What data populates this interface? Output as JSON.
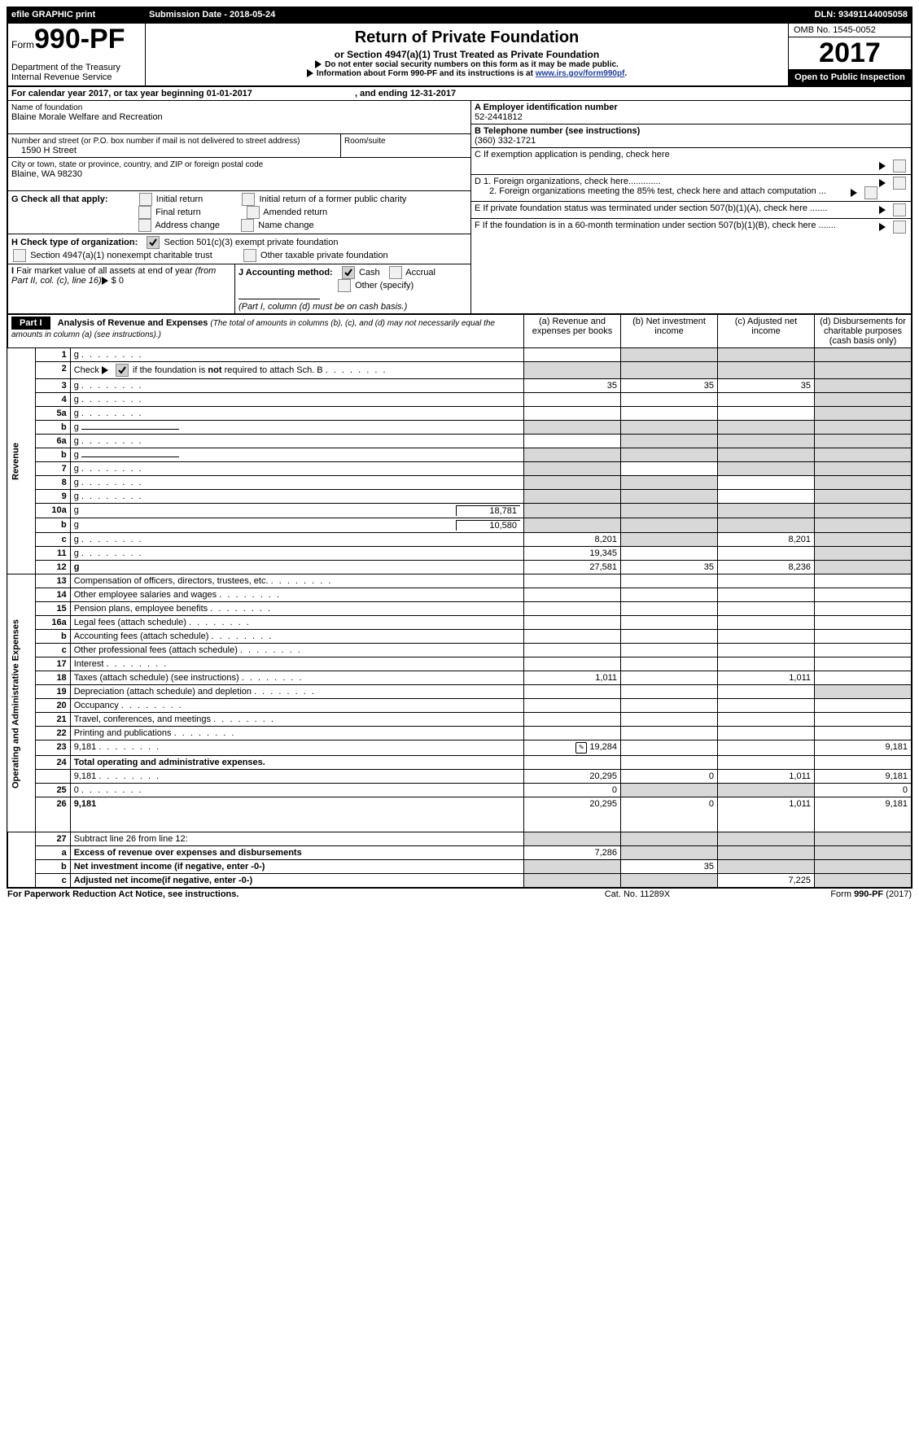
{
  "topbar": {
    "efile": "efile GRAPHIC print",
    "submission": "Submission Date - 2018-05-24",
    "dln": "DLN: 93491144005058"
  },
  "header": {
    "formno_prefix": "Form",
    "formno": "990-PF",
    "dept": "Department of the Treasury",
    "irs": "Internal Revenue Service",
    "title": "Return of Private Foundation",
    "subtitle": "or Section 4947(a)(1) Trust Treated as Private Foundation",
    "note1": "Do not enter social security numbers on this form as it may be made public.",
    "note2": "Information about Form 990-PF and its instructions is at ",
    "link": "www.irs.gov/form990pf",
    "omb": "OMB No. 1545-0052",
    "year": "2017",
    "open": "Open to Public Inspection"
  },
  "calendar": {
    "line": "For calendar year 2017, or tax year beginning 01-01-2017",
    "ending": ", and ending 12-31-2017"
  },
  "id": {
    "name_label": "Name of foundation",
    "name": "Blaine Morale Welfare and Recreation",
    "addr_label": "Number and street (or P.O. box number if mail is not delivered to street address)",
    "addr": "1590 H Street",
    "room_label": "Room/suite",
    "city_label": "City or town, state or province, country, and ZIP or foreign postal code",
    "city": "Blaine, WA  98230"
  },
  "right": {
    "A_label": "A Employer identification number",
    "A": "52-2441812",
    "B_label": "B Telephone number (see instructions)",
    "B": "(360) 332-1721",
    "C": "C  If exemption application is pending, check here",
    "D1": "D 1. Foreign organizations, check here.............",
    "D2": "2. Foreign organizations meeting the 85% test, check here and attach computation ...",
    "E": "E   If private foundation status was terminated under section 507(b)(1)(A), check here .......",
    "F": "F   If the foundation is in a 60-month termination under section 507(b)(1)(B), check here ......."
  },
  "G": {
    "label": "G Check all that apply:",
    "o1": "Initial return",
    "o2": "Initial return of a former public charity",
    "o3": "Final return",
    "o4": "Amended return",
    "o5": "Address change",
    "o6": "Name change"
  },
  "H": {
    "label": "H Check type of organization:",
    "o1": "Section 501(c)(3) exempt private foundation",
    "o2": "Section 4947(a)(1) nonexempt charitable trust",
    "o3": "Other taxable private foundation"
  },
  "I": {
    "label": "I Fair market value of all assets at end of year (from Part II, col. (c), line 16)",
    "val": "$   0"
  },
  "J": {
    "label": "J Accounting method:",
    "cash": "Cash",
    "accrual": "Accrual",
    "other": "Other (specify)",
    "note": "(Part I, column (d) must be on cash basis.)"
  },
  "part1": {
    "label": "Part I",
    "title": "Analysis of Revenue and Expenses",
    "note": "(The total of amounts in columns (b), (c), and (d) may not necessarily equal the amounts in column (a) (see instructions).)",
    "cols": {
      "a": "(a)      Revenue and expenses per books",
      "b": "(b)      Net investment income",
      "c": "(c)      Adjusted net income",
      "d": "(d)      Disbursements for charitable purposes (cash basis only)"
    }
  },
  "sidelabels": {
    "rev": "Revenue",
    "exp": "Operating and Administrative Expenses"
  },
  "rows": [
    {
      "n": "1",
      "d": "g",
      "a": "",
      "b": "g",
      "c": "g"
    },
    {
      "n": "2",
      "d": "g",
      "a": "g",
      "b": "g",
      "c": "g",
      "special": "check"
    },
    {
      "n": "3",
      "d": "g",
      "a": "35",
      "b": "35",
      "c": "35"
    },
    {
      "n": "4",
      "d": "g",
      "a": "",
      "b": "",
      "c": ""
    },
    {
      "n": "5a",
      "d": "g",
      "a": "",
      "b": "",
      "c": ""
    },
    {
      "n": "b",
      "d": "g",
      "a": "g",
      "b": "g",
      "c": "g",
      "underline": true
    },
    {
      "n": "6a",
      "d": "g",
      "a": "",
      "b": "g",
      "c": "g"
    },
    {
      "n": "b",
      "d": "g",
      "a": "g",
      "b": "g",
      "c": "g",
      "underline": true
    },
    {
      "n": "7",
      "d": "g",
      "a": "g",
      "b": "",
      "c": "g"
    },
    {
      "n": "8",
      "d": "g",
      "a": "g",
      "b": "g",
      "c": ""
    },
    {
      "n": "9",
      "d": "g",
      "a": "g",
      "b": "g",
      "c": ""
    },
    {
      "n": "10a",
      "d": "g",
      "v1": "18,781",
      "a": "g",
      "b": "g",
      "c": "g",
      "inline": true
    },
    {
      "n": "b",
      "d": "g",
      "v1": "10,580",
      "a": "g",
      "b": "g",
      "c": "g",
      "inline": true
    },
    {
      "n": "c",
      "d": "g",
      "a": "8,201",
      "b": "g",
      "c": "8,201"
    },
    {
      "n": "11",
      "d": "g",
      "a": "19,345",
      "b": "",
      "c": ""
    },
    {
      "n": "12",
      "d": "g",
      "a": "27,581",
      "b": "35",
      "c": "8,236",
      "bold": true
    }
  ],
  "exprows": [
    {
      "n": "13",
      "d": "Compensation of officers, directors, trustees, etc."
    },
    {
      "n": "14",
      "d": "Other employee salaries and wages"
    },
    {
      "n": "15",
      "d": "Pension plans, employee benefits"
    },
    {
      "n": "16a",
      "d": "Legal fees (attach schedule)"
    },
    {
      "n": "b",
      "d": "Accounting fees (attach schedule)"
    },
    {
      "n": "c",
      "d": "Other professional fees (attach schedule)"
    },
    {
      "n": "17",
      "d": "Interest"
    },
    {
      "n": "18",
      "d": "Taxes (attach schedule) (see instructions)",
      "a": "1,011",
      "c": "1,011"
    },
    {
      "n": "19",
      "d": "Depreciation (attach schedule) and depletion",
      "dg": true
    },
    {
      "n": "20",
      "d": "Occupancy"
    },
    {
      "n": "21",
      "d": "Travel, conferences, and meetings"
    },
    {
      "n": "22",
      "d": "Printing and publications"
    },
    {
      "n": "23",
      "d": "9,181",
      "a": "19,284",
      "icon": true
    },
    {
      "n": "24",
      "d": "Total operating and administrative expenses.",
      "bold": true,
      "noborder": true
    },
    {
      "n": "",
      "d": "9,181",
      "a": "20,295",
      "b": "0",
      "c": "1,011"
    },
    {
      "n": "25",
      "d": "0",
      "a": "0",
      "bg": true,
      "cg": true
    },
    {
      "n": "26",
      "d": "9,181",
      "a": "20,295",
      "b": "0",
      "c": "1,011",
      "bold": true,
      "tall": true
    }
  ],
  "line27": [
    {
      "n": "27",
      "d": "Subtract line 26 from line 12:",
      "ag": true,
      "bg": true,
      "cg": true,
      "dg": true
    },
    {
      "n": "a",
      "d": "Excess of revenue over expenses and disbursements",
      "a": "7,286",
      "bg": true,
      "cg": true,
      "dg": true,
      "bold": true
    },
    {
      "n": "b",
      "d": "Net investment income (if negative, enter -0-)",
      "ag": true,
      "b": "35",
      "cg": true,
      "dg": true,
      "bold": true
    },
    {
      "n": "c",
      "d": "Adjusted net income(if negative, enter -0-)",
      "ag": true,
      "bg": true,
      "c": "7,225",
      "dg": true,
      "bold": true
    }
  ],
  "footer": {
    "left": "For Paperwork Reduction Act Notice, see instructions.",
    "mid": "Cat. No. 11289X",
    "right": "Form 990-PF (2017)"
  },
  "colors": {
    "gray": "#d8d8d8"
  }
}
